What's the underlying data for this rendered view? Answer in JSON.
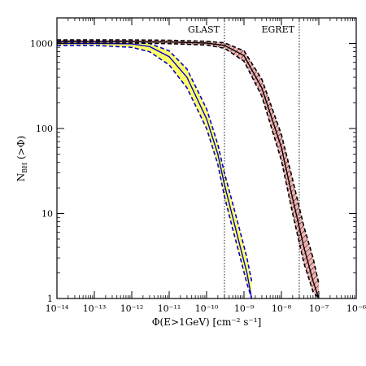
{
  "chart_data": {
    "type": "line",
    "x_scale": "log",
    "y_scale": "log",
    "xlim": [
      1e-14,
      1e-06
    ],
    "ylim": [
      1,
      2000
    ],
    "x_ticks": [
      1e-14,
      1e-13,
      1e-12,
      1e-11,
      1e-10,
      1e-09,
      1e-08,
      1e-07,
      1e-06
    ],
    "y_ticks": [
      1,
      10,
      100,
      1000
    ],
    "x_tick_labels": [
      "10⁻¹⁴",
      "10⁻¹³",
      "10⁻¹²",
      "10⁻¹¹",
      "10⁻¹⁰",
      "10⁻⁹",
      "10⁻⁸",
      "10⁻⁷",
      "10⁻⁶"
    ],
    "y_tick_labels": [
      "1",
      "10",
      "100",
      "1000"
    ],
    "xlabel": "Φ(E>1GeV) [cm⁻² s⁻¹]",
    "ylabel_main": "N",
    "ylabel_sub": "BH",
    "ylabel_tail": " (>Φ)",
    "reference_lines": [
      {
        "label": "GLAST",
        "x": 3e-10
      },
      {
        "label": "EGRET",
        "x": 3e-08
      }
    ],
    "series": [
      {
        "color": "#0000cc",
        "band_color": "#ffff66",
        "x": [
          1e-14,
          1e-13,
          1e-12,
          3e-12,
          1e-11,
          3e-11,
          1e-10,
          2e-10,
          3e-10,
          5e-10,
          8e-10,
          1.2e-09,
          1.6e-09
        ],
        "y": [
          1000,
          1000,
          990,
          920,
          700,
          400,
          130,
          50,
          22,
          9,
          4,
          2,
          1
        ],
        "y_low": [
          950,
          950,
          900,
          800,
          560,
          300,
          100,
          38,
          16,
          6.5,
          3,
          1.5,
          1
        ],
        "y_high": [
          1060,
          1060,
          1050,
          1000,
          820,
          500,
          170,
          65,
          30,
          13,
          6,
          3,
          1.6
        ]
      },
      {
        "color": "#000000",
        "band_color": "#e05050",
        "x": [
          1e-14,
          1e-13,
          1e-12,
          1e-11,
          1e-10,
          3e-10,
          1e-09,
          3e-09,
          1e-08,
          2e-08,
          4e-08,
          7e-08,
          1e-07
        ],
        "y": [
          1050,
          1050,
          1050,
          1040,
          1010,
          950,
          720,
          300,
          60,
          15,
          4,
          1.6,
          1
        ],
        "y_low": [
          1010,
          1010,
          1010,
          995,
          960,
          880,
          620,
          240,
          42,
          10,
          2.6,
          1.2,
          1
        ],
        "y_high": [
          1100,
          1100,
          1100,
          1090,
          1060,
          1020,
          820,
          380,
          85,
          25,
          7,
          3,
          1.5
        ]
      }
    ]
  }
}
